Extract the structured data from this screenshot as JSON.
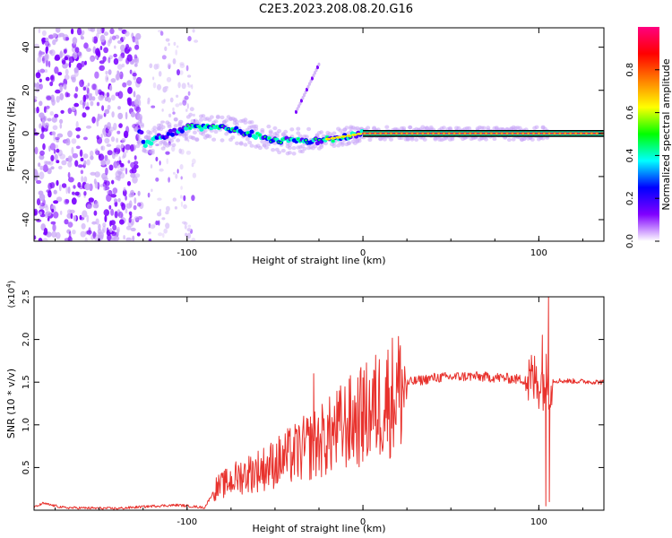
{
  "figure_title": "C2E3.2023.208.08.20.G16",
  "chart_data": [
    {
      "type": "heatmap",
      "title": "",
      "xlabel": "Height of straight line (km)",
      "ylabel": "Frequency (Hz)",
      "xlim": [
        -187,
        137
      ],
      "ylim": [
        -50,
        49
      ],
      "x_ticks": [
        -100,
        0,
        100
      ],
      "y_ticks": [
        -40,
        -20,
        0,
        20,
        40
      ],
      "colorbar": {
        "label": "Normalized spectral amplitude",
        "range": [
          0,
          1
        ],
        "ticks": [
          0.0,
          0.2,
          0.4,
          0.6,
          0.8
        ],
        "tick_labels": [
          "0.0",
          "0.2",
          "0.4",
          "0.6",
          "0.8"
        ],
        "colormap_stops": [
          "#ffffff",
          "#8000ff",
          "#0000ff",
          "#00ffff",
          "#00ff00",
          "#ffff00",
          "#ff8000",
          "#ff0000",
          "#ff0080"
        ]
      },
      "features": {
        "noise_region_x": [
          -187,
          -126
        ],
        "sparse_region_x": [
          -122,
          -95
        ],
        "ridge": [
          {
            "x": -125,
            "f": -5
          },
          {
            "x": -100,
            "f": 3
          },
          {
            "x": -75,
            "f": 2
          },
          {
            "x": -50,
            "f": -3
          },
          {
            "x": -30,
            "f": -4
          },
          {
            "x": -15,
            "f": -2
          },
          {
            "x": 0,
            "f": 0
          },
          {
            "x": 137,
            "f": 0
          }
        ],
        "weak_branch": [
          {
            "x": -38,
            "f": 10
          },
          {
            "x": -25,
            "f": 32
          }
        ]
      }
    },
    {
      "type": "line",
      "title": "",
      "xlabel": "Height of straight line (km)",
      "ylabel": "SNR (10 * v/v)",
      "y_multiplier_label": "(x10",
      "y_multiplier_exp": "4",
      "y_multiplier_close": ")",
      "xlim": [
        -187,
        137
      ],
      "ylim": [
        0,
        2.5
      ],
      "x_ticks": [
        -100,
        0,
        100
      ],
      "y_ticks": [
        0.5,
        1.0,
        1.5,
        2.0,
        2.5
      ],
      "y_tick_labels": [
        "0.5",
        "1.0",
        "1.5",
        "2.0",
        "2.5"
      ],
      "series": [
        {
          "name": "SNR",
          "color": "#e8322d",
          "envelope": [
            {
              "x": -187,
              "y": 0.03
            },
            {
              "x": -182,
              "y": 0.08
            },
            {
              "x": -170,
              "y": 0.03
            },
            {
              "x": -140,
              "y": 0.02
            },
            {
              "x": -118,
              "y": 0.05
            },
            {
              "x": -105,
              "y": 0.06
            },
            {
              "x": -90,
              "y": 0.03
            },
            {
              "x": -84,
              "y": 0.25
            },
            {
              "x": -70,
              "y": 0.4
            },
            {
              "x": -55,
              "y": 0.5
            },
            {
              "x": -40,
              "y": 0.65
            },
            {
              "x": -30,
              "y": 0.75
            },
            {
              "x": -20,
              "y": 0.85
            },
            {
              "x": -10,
              "y": 1.0
            },
            {
              "x": 0,
              "y": 1.1
            },
            {
              "x": 10,
              "y": 1.25
            },
            {
              "x": 20,
              "y": 1.4
            },
            {
              "x": 27,
              "y": 1.5
            },
            {
              "x": 40,
              "y": 1.55
            },
            {
              "x": 60,
              "y": 1.57
            },
            {
              "x": 80,
              "y": 1.55
            },
            {
              "x": 95,
              "y": 1.52
            },
            {
              "x": 107,
              "y": 1.52
            },
            {
              "x": 137,
              "y": 1.5
            }
          ],
          "spikes": [
            {
              "x": -28,
              "y": 1.6
            },
            {
              "x": -38,
              "y": 0.95
            },
            {
              "x": 0,
              "y": 1.55
            },
            {
              "x": 102,
              "y": 2.05
            },
            {
              "x": 104,
              "y": 0.05
            },
            {
              "x": 105.5,
              "y": 2.5
            },
            {
              "x": 106,
              "y": 0.1
            }
          ]
        }
      ]
    }
  ]
}
